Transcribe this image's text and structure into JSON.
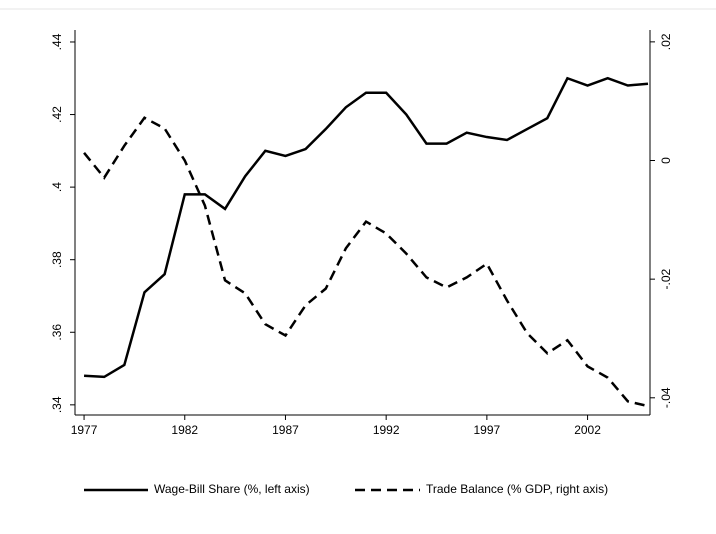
{
  "chart_data": {
    "type": "line",
    "x": [
      1977,
      1978,
      1979,
      1980,
      1981,
      1982,
      1983,
      1984,
      1985,
      1986,
      1987,
      1988,
      1989,
      1990,
      1991,
      1992,
      1993,
      1994,
      1995,
      1996,
      1997,
      1998,
      1999,
      2000,
      2001,
      2002,
      2003,
      2004,
      2005
    ],
    "series": [
      {
        "name": "Wage-Bill Share (%, left axis)",
        "color": "#000000",
        "line_style": "solid",
        "values": [
          0.348,
          0.3477,
          0.351,
          0.371,
          0.376,
          0.398,
          0.398,
          0.394,
          0.403,
          0.41,
          0.4086,
          0.4105,
          0.416,
          0.422,
          0.426,
          0.426,
          0.42,
          0.412,
          0.412,
          0.415,
          0.4138,
          0.413,
          0.416,
          0.419,
          0.43,
          0.428,
          0.43,
          0.428,
          0.4285
        ]
      },
      {
        "name": "Trade Balance (% GDP, right axis)",
        "color": "#000000",
        "line_style": "dashed",
        "axis": "y2",
        "values": [
          0.0013,
          -0.0029,
          0.0025,
          0.0072,
          0.0054,
          0,
          -0.0076,
          -0.0202,
          -0.0224,
          -0.0276,
          -0.0295,
          -0.0244,
          -0.0216,
          -0.0148,
          -0.0103,
          -0.0123,
          -0.0157,
          -0.0197,
          -0.0214,
          -0.0197,
          -0.0174,
          -0.0236,
          -0.0291,
          -0.0325,
          -0.0303,
          -0.0347,
          -0.0366,
          -0.0406,
          -0.0414
        ]
      }
    ],
    "xlim": [
      1976.55,
      2005.1
    ],
    "xticks": [
      1977,
      1982,
      1987,
      1992,
      1997,
      2002
    ],
    "ylim": [
      0.3372,
      0.4433
    ],
    "yticks": [
      {
        "value": 0.34,
        "label": ".34"
      },
      {
        "value": 0.36,
        "label": ".36"
      },
      {
        "value": 0.38,
        "label": ".38"
      },
      {
        "value": 0.4,
        "label": ".4"
      },
      {
        "value": 0.42,
        "label": ".42"
      },
      {
        "value": 0.44,
        "label": ".44"
      }
    ],
    "y2lim": [
      -0.0429,
      0.022
    ],
    "y2ticks": [
      {
        "value": -0.04,
        "label": "-.04"
      },
      {
        "value": -0.02,
        "label": "-.02"
      },
      0,
      {
        "value": 0.02,
        "label": ".02"
      }
    ],
    "grid": false,
    "legend": "bottom"
  }
}
